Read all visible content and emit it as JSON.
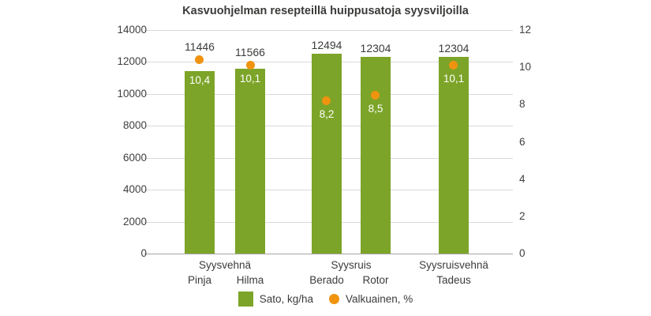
{
  "chart_data": {
    "type": "bar",
    "title": "Kasvuohjelman resepteillä huippusatoja syysviljoilla",
    "categories": [
      "Pinja",
      "Hilma",
      "Berado",
      "Rotor",
      "Tadeus"
    ],
    "group_labels": [
      {
        "label": "Syysvehnä",
        "span": [
          0,
          1
        ]
      },
      {
        "label": "Syysruis",
        "span": [
          2,
          3
        ]
      },
      {
        "label": "Syysruisvehnä",
        "span": [
          4,
          4
        ]
      }
    ],
    "series": [
      {
        "name": "Sato, kg/ha",
        "type": "bar",
        "axis": "left",
        "color": "#7ca428",
        "values": [
          11446,
          11566,
          12494,
          12304,
          12304
        ],
        "value_labels": [
          "11446",
          "11566",
          "12494",
          "12304",
          "12304"
        ]
      },
      {
        "name": "Valkuainen, %",
        "type": "point",
        "axis": "right",
        "color": "#f0930f",
        "values": [
          10.4,
          10.1,
          8.2,
          8.5,
          10.1
        ],
        "value_labels": [
          "10,4",
          "10,1",
          "8,2",
          "8,5",
          "10,1"
        ]
      }
    ],
    "left_axis": {
      "min": 0,
      "max": 14000,
      "step": 2000,
      "ticks": [
        "0",
        "2000",
        "4000",
        "6000",
        "8000",
        "10000",
        "12000",
        "14000"
      ]
    },
    "right_axis": {
      "min": 0,
      "max": 12,
      "step": 2,
      "ticks": [
        "0",
        "2",
        "4",
        "6",
        "8",
        "10",
        "12"
      ]
    },
    "grid": true,
    "legend_position": "bottom",
    "colors": {
      "bar": "#7ca428",
      "point": "#f0930f",
      "gridline": "#d9d9d9",
      "baseline": "#a6a6a6",
      "text": "#3b3b3a",
      "background": "#ffffff"
    }
  },
  "legend": [
    {
      "label": "Sato, kg/ha",
      "shape": "square",
      "color": "#7ca428"
    },
    {
      "label": "Valkuainen, %",
      "shape": "circle",
      "color": "#f0930f"
    }
  ]
}
